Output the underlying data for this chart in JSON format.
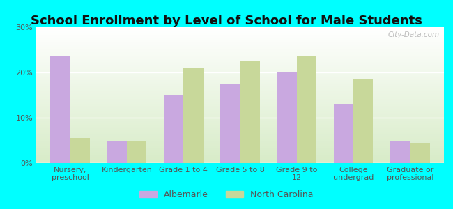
{
  "title": "School Enrollment by Level of School for Male Students",
  "categories": [
    "Nursery,\npreschool",
    "Kindergarten",
    "Grade 1 to 4",
    "Grade 5 to 8",
    "Grade 9 to\n12",
    "College\nundergrad",
    "Graduate or\nprofessional"
  ],
  "albemarle": [
    23.5,
    5.0,
    15.0,
    17.5,
    20.0,
    13.0,
    5.0
  ],
  "north_carolina": [
    5.5,
    5.0,
    21.0,
    22.5,
    23.5,
    18.5,
    4.5
  ],
  "albemarle_color": "#c9a8e0",
  "nc_color": "#c8d89a",
  "background_outer": "#00ffff",
  "background_inner_top": "#ffffff",
  "background_inner_bottom": "#d8ecc8",
  "ylim": [
    0,
    30
  ],
  "yticks": [
    0,
    10,
    20,
    30
  ],
  "ytick_labels": [
    "0%",
    "10%",
    "20%",
    "30%"
  ],
  "legend_albemarle": "Albemarle",
  "legend_nc": "North Carolina",
  "bar_width": 0.35,
  "title_fontsize": 13,
  "tick_fontsize": 8,
  "legend_fontsize": 9,
  "watermark": "City-Data.com"
}
